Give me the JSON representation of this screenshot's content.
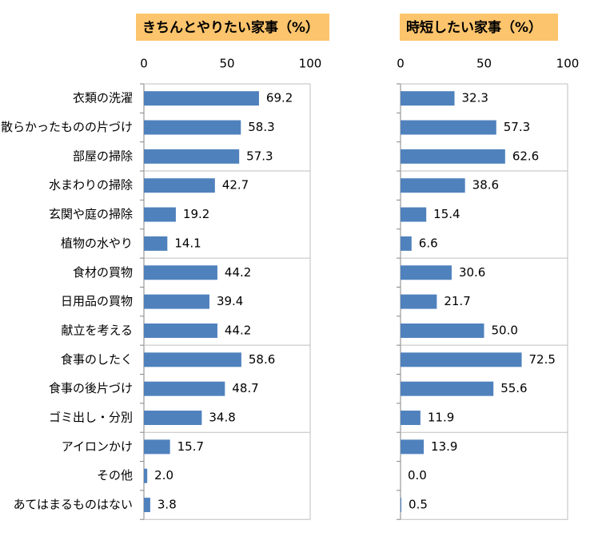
{
  "chart_data": [
    {
      "type": "bar",
      "orientation": "horizontal",
      "title": "きちんとやりたい家事（%）",
      "categories": [
        "衣類の洗濯",
        "散らかったものの片づけ",
        "部屋の掃除",
        "水まわりの掃除",
        "玄関や庭の掃除",
        "植物の水やり",
        "食材の買物",
        "日用品の買物",
        "献立を考える",
        "食事のしたく",
        "食事の後片づけ",
        "ゴミ出し・分別",
        "アイロンかけ",
        "その他",
        "あてはまるものはない"
      ],
      "values": [
        69.2,
        58.3,
        57.3,
        42.7,
        19.2,
        14.1,
        44.2,
        39.4,
        44.2,
        58.6,
        48.7,
        34.8,
        15.7,
        2.0,
        3.8
      ],
      "value_labels": [
        "69.2",
        "58.3",
        "57.3",
        "42.7",
        "19.2",
        "14.1",
        "44.2",
        "39.4",
        "44.2",
        "58.6",
        "48.7",
        "34.8",
        "15.7",
        "2.0",
        "3.8"
      ],
      "color": "#4f81bd",
      "xlim": [
        0,
        100
      ],
      "xticks": [
        0,
        50,
        100
      ]
    },
    {
      "type": "bar",
      "orientation": "horizontal",
      "title": "時短したい家事（%）",
      "values": [
        32.3,
        57.3,
        62.6,
        38.6,
        15.4,
        6.6,
        30.6,
        21.7,
        50.0,
        72.5,
        55.6,
        11.9,
        13.9,
        0.0,
        0.5
      ],
      "value_labels": [
        "32.3",
        "57.3",
        "62.6",
        "38.6",
        "15.4",
        "6.6",
        "30.6",
        "21.7",
        "50.0",
        "72.5",
        "55.6",
        "11.9",
        "13.9",
        "0.0",
        "0.5"
      ],
      "color": "#4f81bd",
      "xlim": [
        0,
        100
      ],
      "xticks": [
        0,
        50,
        100
      ]
    }
  ]
}
